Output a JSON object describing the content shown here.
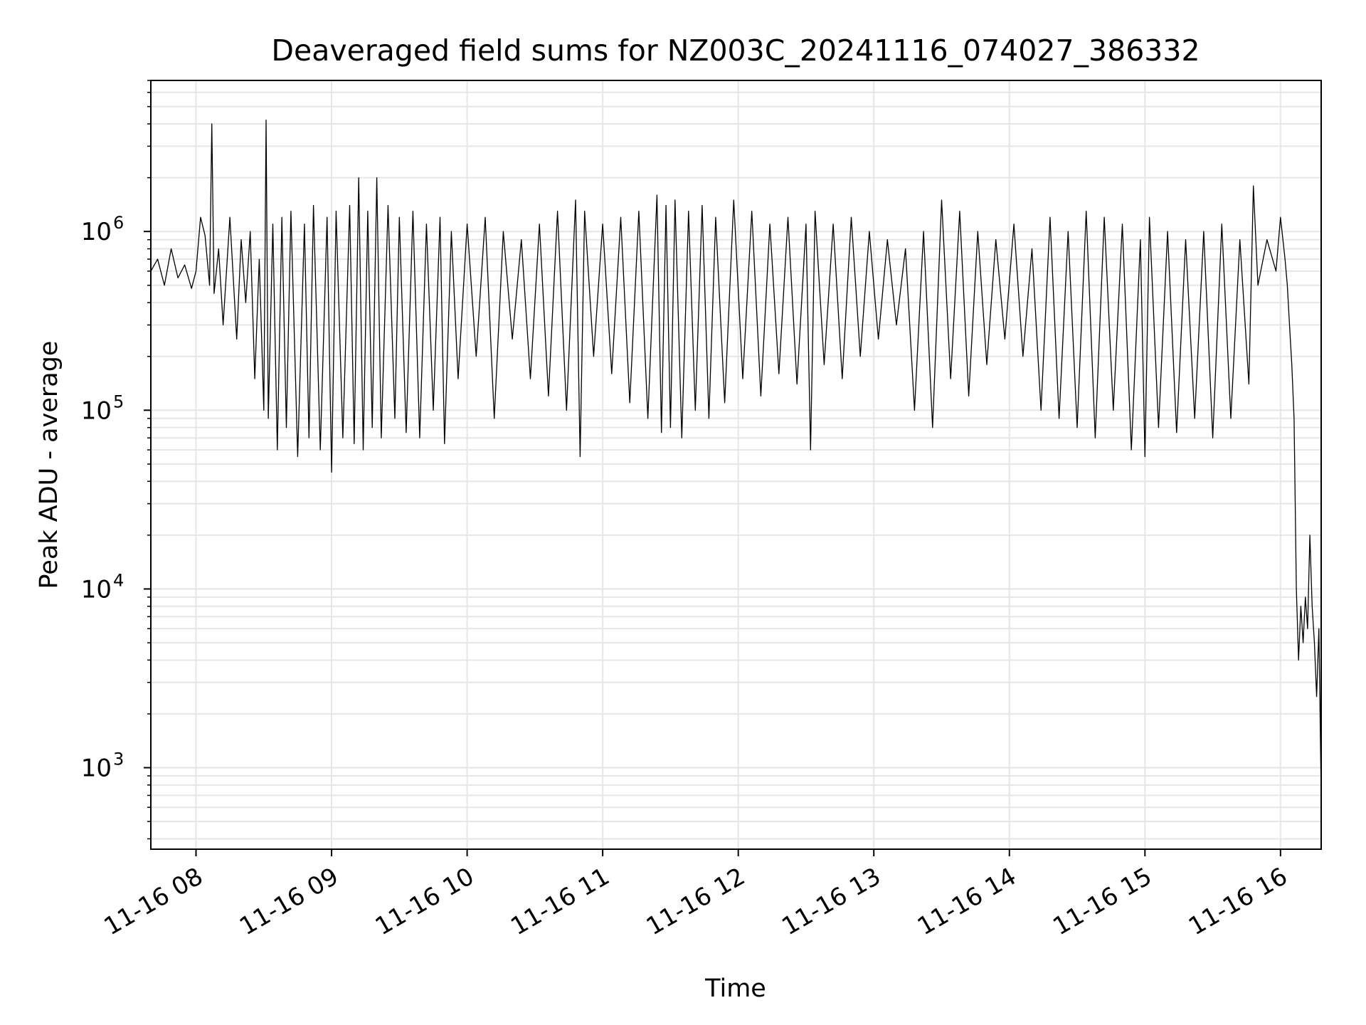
{
  "chart_data": {
    "type": "line",
    "title": "Deaveraged field sums for NZ003C_20241116_074027_386332",
    "xlabel": "Time",
    "ylabel": "Peak ADU - average",
    "yscale": "log",
    "grid": "on",
    "line_color": "#000000",
    "grid_color": "#e6e6e6",
    "xlim": [
      "2024-11-16 07:40",
      "2024-11-16 16:18"
    ],
    "ylim": [
      350,
      7000000
    ],
    "x_ticks": [
      "11-16 08",
      "11-16 09",
      "11-16 10",
      "11-16 11",
      "11-16 12",
      "11-16 13",
      "11-16 14",
      "11-16 15",
      "11-16 16"
    ],
    "y_ticks": [
      {
        "base": "10",
        "exp": "3",
        "value": 1000
      },
      {
        "base": "10",
        "exp": "4",
        "value": 10000
      },
      {
        "base": "10",
        "exp": "5",
        "value": 100000
      },
      {
        "base": "10",
        "exp": "6",
        "value": 1000000
      }
    ],
    "series": [
      {
        "x": [
          "07:40",
          "07:43",
          "07:46",
          "07:49",
          "07:52",
          "07:55",
          "07:58",
          "08:00",
          "08:02",
          "08:04",
          "08:06",
          "08:07",
          "08:08",
          "08:10",
          "08:12",
          "08:15",
          "08:18",
          "08:20",
          "08:22",
          "08:24",
          "08:26",
          "08:28",
          "08:30",
          "08:31",
          "08:32",
          "08:34",
          "08:36",
          "08:38",
          "08:40",
          "08:42",
          "08:45",
          "08:48",
          "08:50",
          "08:52",
          "08:55",
          "08:58",
          "09:00",
          "09:02",
          "09:05",
          "09:08",
          "09:10",
          "09:12",
          "09:14",
          "09:16",
          "09:18",
          "09:20",
          "09:22",
          "09:25",
          "09:28",
          "09:30",
          "09:33",
          "09:36",
          "09:39",
          "09:42",
          "09:45",
          "09:48",
          "09:50",
          "09:53",
          "09:56",
          "10:00",
          "10:04",
          "10:08",
          "10:12",
          "10:16",
          "10:20",
          "10:24",
          "10:28",
          "10:32",
          "10:36",
          "10:40",
          "10:44",
          "10:48",
          "10:50",
          "10:52",
          "10:56",
          "11:00",
          "11:04",
          "11:08",
          "11:12",
          "11:16",
          "11:20",
          "11:24",
          "11:26",
          "11:28",
          "11:30",
          "11:32",
          "11:35",
          "11:38",
          "11:41",
          "11:44",
          "11:47",
          "11:50",
          "11:54",
          "11:58",
          "12:02",
          "12:06",
          "12:10",
          "12:14",
          "12:18",
          "12:22",
          "12:26",
          "12:30",
          "12:32",
          "12:34",
          "12:38",
          "12:42",
          "12:46",
          "12:50",
          "12:54",
          "12:58",
          "13:02",
          "13:06",
          "13:10",
          "13:14",
          "13:18",
          "13:22",
          "13:26",
          "13:30",
          "13:34",
          "13:38",
          "13:42",
          "13:46",
          "13:50",
          "13:54",
          "13:58",
          "14:02",
          "14:06",
          "14:10",
          "14:14",
          "14:18",
          "14:22",
          "14:26",
          "14:30",
          "14:34",
          "14:38",
          "14:42",
          "14:46",
          "14:50",
          "14:54",
          "14:58",
          "15:00",
          "15:02",
          "15:06",
          "15:10",
          "15:14",
          "15:18",
          "15:22",
          "15:26",
          "15:30",
          "15:34",
          "15:38",
          "15:42",
          "15:46",
          "15:48",
          "15:50",
          "15:54",
          "15:58",
          "16:00",
          "16:02",
          "16:03",
          "16:04",
          "16:05",
          "16:06",
          "16:07",
          "16:08",
          "16:09",
          "16:10",
          "16:11",
          "16:12",
          "16:13",
          "16:14",
          "16:15",
          "16:16",
          "16:17",
          "16:18"
        ],
        "y": [
          600000,
          700000,
          500000,
          800000,
          550000,
          650000,
          480000,
          600000,
          1200000,
          950000,
          500000,
          4000000,
          450000,
          800000,
          300000,
          1200000,
          250000,
          900000,
          400000,
          1000000,
          150000,
          700000,
          100000,
          4200000,
          90000,
          1100000,
          60000,
          1200000,
          80000,
          1300000,
          55000,
          1100000,
          70000,
          1400000,
          60000,
          1200000,
          45000,
          1300000,
          70000,
          1400000,
          65000,
          2000000,
          60000,
          1300000,
          80000,
          2000000,
          70000,
          1400000,
          90000,
          1200000,
          75000,
          1300000,
          70000,
          1100000,
          100000,
          1200000,
          65000,
          1000000,
          150000,
          1100000,
          200000,
          1200000,
          90000,
          1000000,
          250000,
          900000,
          150000,
          1100000,
          120000,
          1300000,
          100000,
          1500000,
          55000,
          1300000,
          200000,
          1100000,
          160000,
          1200000,
          110000,
          1300000,
          90000,
          1600000,
          75000,
          1400000,
          80000,
          1500000,
          70000,
          1300000,
          100000,
          1400000,
          90000,
          1200000,
          110000,
          1500000,
          150000,
          1300000,
          120000,
          1100000,
          160000,
          1200000,
          140000,
          1100000,
          60000,
          1300000,
          180000,
          1100000,
          150000,
          1200000,
          200000,
          1000000,
          250000,
          900000,
          300000,
          800000,
          100000,
          1000000,
          80000,
          1500000,
          150000,
          1300000,
          120000,
          1000000,
          180000,
          900000,
          250000,
          1100000,
          200000,
          800000,
          100000,
          1200000,
          90000,
          1000000,
          80000,
          1300000,
          70000,
          1200000,
          100000,
          1100000,
          60000,
          900000,
          55000,
          1200000,
          80000,
          1000000,
          75000,
          900000,
          90000,
          1000000,
          70000,
          1100000,
          90000,
          900000,
          140000,
          1800000,
          500000,
          900000,
          600000,
          1200000,
          700000,
          500000,
          300000,
          180000,
          90000,
          10000,
          4000,
          8000,
          5000,
          9000,
          6000,
          20000,
          8000,
          5000,
          2500,
          6000,
          700
        ]
      }
    ]
  }
}
